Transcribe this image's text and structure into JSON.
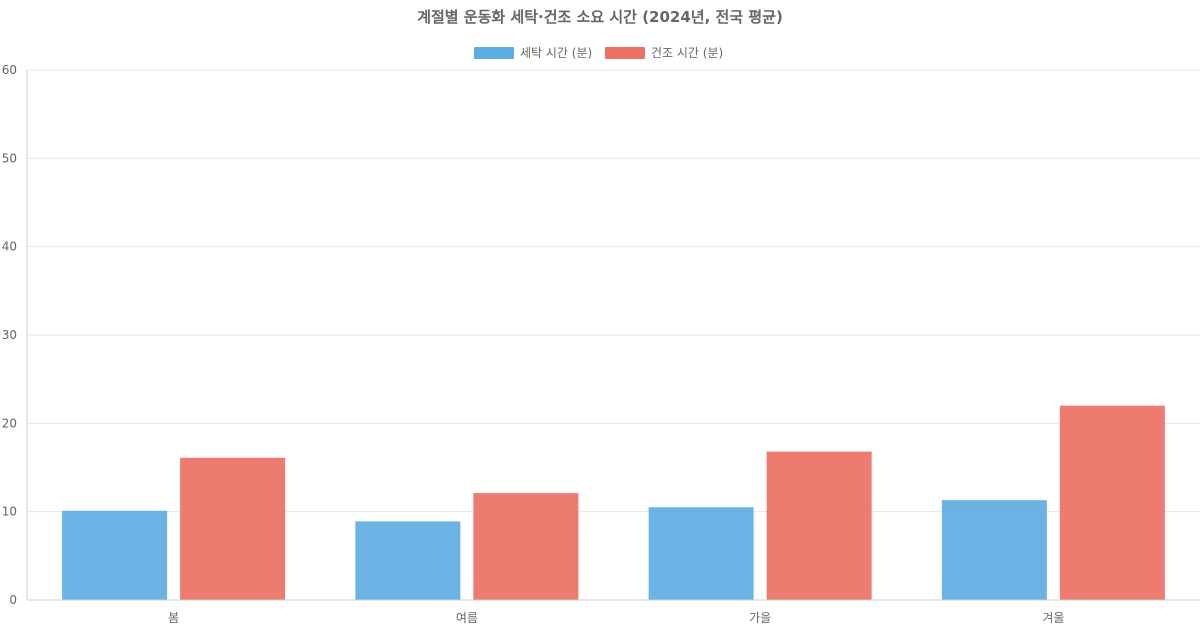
{
  "chart_data": {
    "type": "bar",
    "title": "계절별 운동화 세탁·건조 소요 시간 (2024년, 전국 평균)",
    "xlabel": "",
    "ylabel": "",
    "categories": [
      "봄",
      "여름",
      "가을",
      "겨울"
    ],
    "series": [
      {
        "name": "세탁 시간 (분)",
        "color": "#5dade2",
        "values": [
          10.1,
          8.9,
          10.5,
          11.3
        ]
      },
      {
        "name": "건조 시간 (분)",
        "color": "#ec7063",
        "values": [
          16.1,
          12.1,
          16.8,
          22.0
        ]
      }
    ],
    "ylim": [
      0,
      60
    ],
    "yticks": [
      0,
      10,
      20,
      30,
      40,
      50,
      60
    ],
    "grid": true,
    "legend_position": "top-center"
  }
}
